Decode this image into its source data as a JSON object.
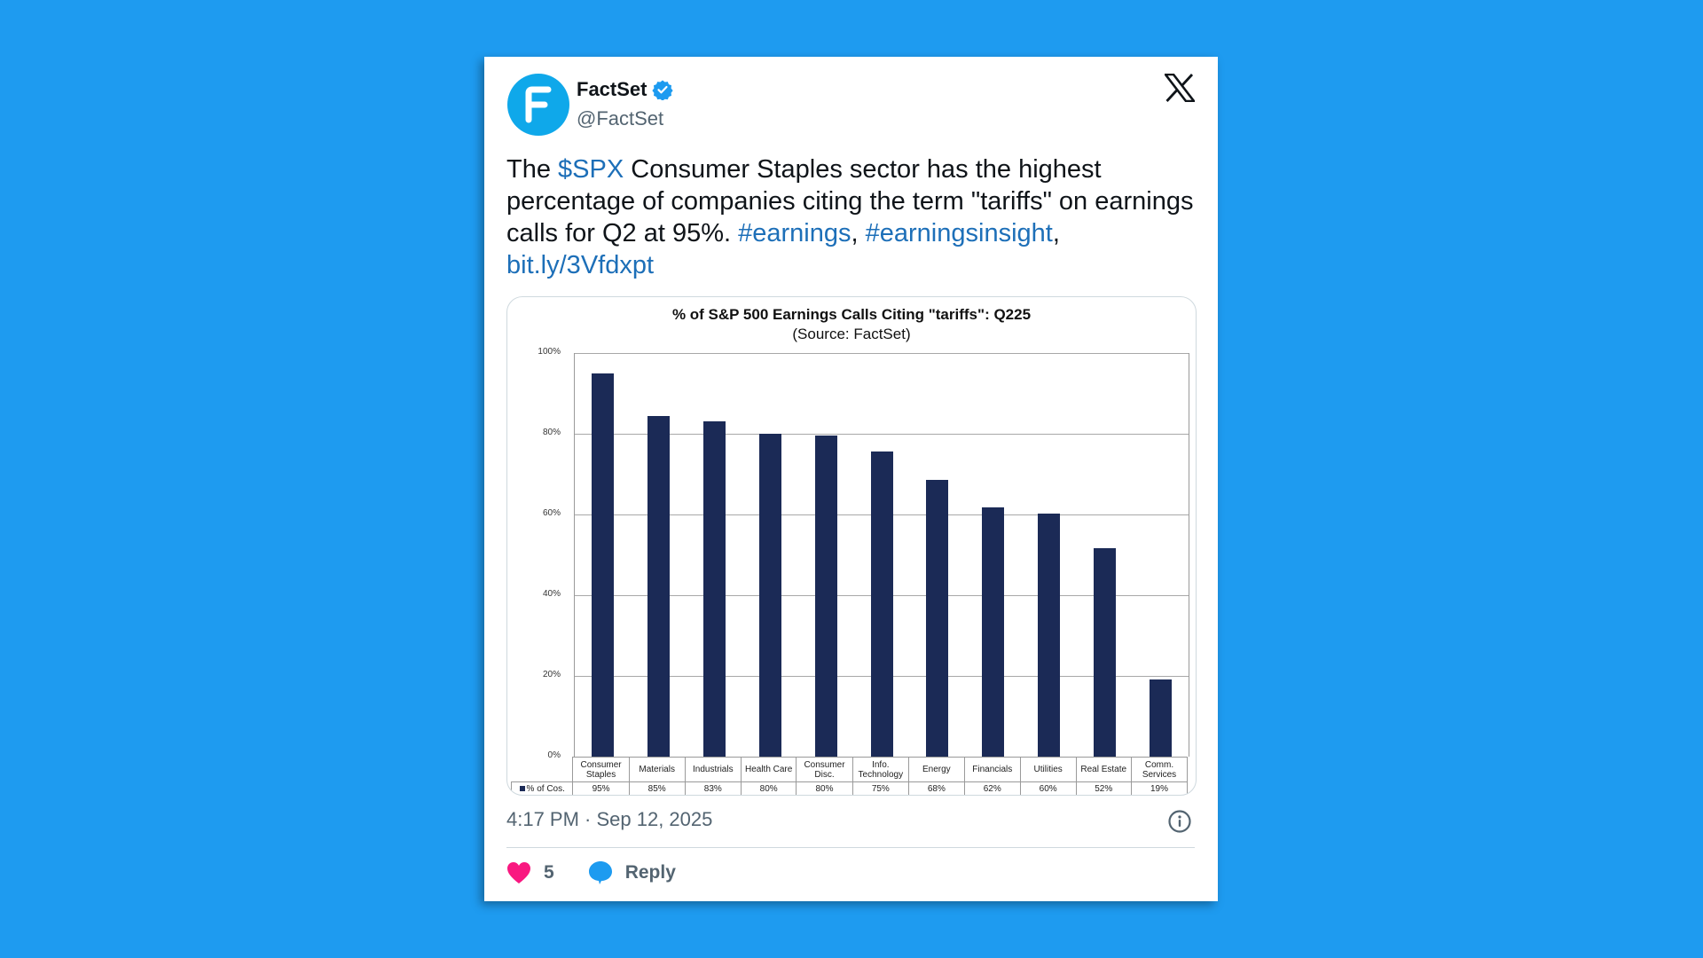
{
  "tweet": {
    "author": {
      "display_name": "FactSet",
      "handle": "@FactSet",
      "avatar_letter": "F",
      "verified": true
    },
    "platform_icon": "x-logo-icon",
    "text_parts": [
      {
        "text": "The ",
        "type": "text"
      },
      {
        "text": "$SPX",
        "type": "cashtag"
      },
      {
        "text": " Consumer Staples sector has the highest percentage of companies citing the term \"tariffs\" on earnings calls for Q2 at 95%. ",
        "type": "text"
      },
      {
        "text": "#earnings",
        "type": "hashtag"
      },
      {
        "text": ", ",
        "type": "text"
      },
      {
        "text": "#earningsinsight",
        "type": "hashtag"
      },
      {
        "text": ",",
        "type": "text"
      },
      {
        "text": " ",
        "type": "text"
      },
      {
        "text": "bit.ly/3Vfdxpt",
        "type": "link"
      }
    ],
    "timestamp": "4:17 PM · Sep 12, 2025",
    "likes": "5",
    "reply_label": "Reply"
  },
  "colors": {
    "background": "#1e9bf0",
    "link": "#1d6fb8",
    "avatar": "#0fa8ea",
    "bar": "#1b2a56",
    "like": "#f91880",
    "reply": "#1d9bf0"
  },
  "chart_data": {
    "type": "bar",
    "title": "% of S&P 500 Earnings Calls Citing \"tariffs\": Q225",
    "subtitle": "(Source: FactSet)",
    "xlabel": "",
    "ylabel": "",
    "ylim": [
      0,
      100
    ],
    "yticks": [
      "100%",
      "80%",
      "60%",
      "40%",
      "20%",
      "0%"
    ],
    "grid": true,
    "legend": "% of Cos.",
    "categories": [
      "Consumer Staples",
      "Materials",
      "Industrials",
      "Health Care",
      "Consumer Disc.",
      "Info. Technology",
      "Energy",
      "Financials",
      "Utilities",
      "Real Estate",
      "Comm. Services"
    ],
    "category_lines": [
      [
        "Consumer",
        "Staples"
      ],
      [
        "Materials"
      ],
      [
        "Industrials"
      ],
      [
        "Health Care"
      ],
      [
        "Consumer",
        "Disc."
      ],
      [
        "Info.",
        "Technology"
      ],
      [
        "Energy"
      ],
      [
        "Financials"
      ],
      [
        "Utilities"
      ],
      [
        "Real Estate"
      ],
      [
        "Comm.",
        "Services"
      ]
    ],
    "values": [
      95,
      85,
      83,
      80,
      80,
      75,
      68,
      62,
      60,
      52,
      19
    ],
    "value_labels": [
      "95%",
      "85%",
      "83%",
      "80%",
      "80%",
      "75%",
      "68%",
      "62%",
      "60%",
      "52%",
      "19%"
    ],
    "bar_heights_estimated": [
      95,
      84.5,
      83,
      80,
      79.5,
      75.5,
      68.5,
      61.7,
      60.2,
      51.7,
      19.2
    ]
  }
}
